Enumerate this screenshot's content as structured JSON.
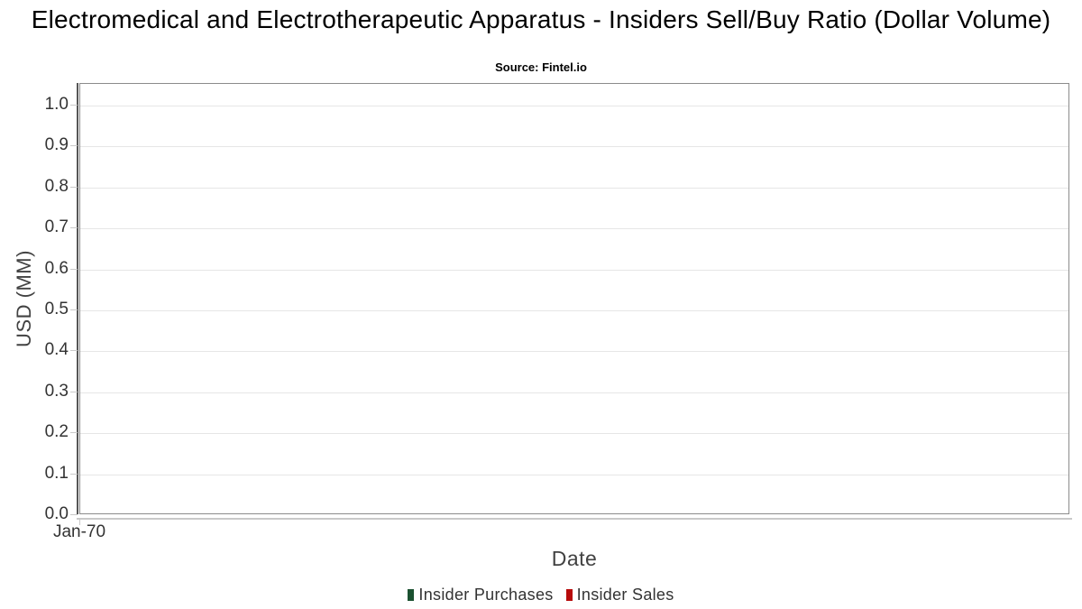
{
  "chart": {
    "title": "Electromedical and Electrotherapeutic Apparatus - Insiders Sell/Buy Ratio (Dollar Volume)",
    "subtitle": "Source: Fintel.io",
    "x_axis": {
      "title": "Date",
      "ticks": [
        "Jan-70"
      ]
    },
    "y_axis": {
      "title": "USD (MM)",
      "ticks": [
        "1.0",
        "0.9",
        "0.8",
        "0.7",
        "0.6",
        "0.5",
        "0.4",
        "0.3",
        "0.2",
        "0.1",
        "0.0"
      ]
    },
    "legend": [
      {
        "label": "Insider Purchases",
        "color": "#1b5130"
      },
      {
        "label": "Insider Sales",
        "color": "#b70b0b"
      }
    ],
    "colors": {
      "gridline": "#e6e6e6",
      "plot_border": "#8c8c8c",
      "axis_line": "#555555",
      "tick": "#c9c9c9",
      "tick_label": "#333333",
      "axis_title": "#424242",
      "legend_text": "#333333"
    }
  },
  "chart_data": {
    "type": "bar",
    "title": "Electromedical and Electrotherapeutic Apparatus - Insiders Sell/Buy Ratio (Dollar Volume)",
    "subtitle": "Source: Fintel.io",
    "xlabel": "Date",
    "ylabel": "USD (MM)",
    "x": [],
    "series": [
      {
        "name": "Insider Purchases",
        "color": "#1b5130",
        "values": []
      },
      {
        "name": "Insider Sales",
        "color": "#b70b0b",
        "values": []
      }
    ],
    "x_tick_labels": [
      "Jan-70"
    ],
    "ylim": [
      0,
      1.05
    ],
    "y_ticks": [
      0.0,
      0.1,
      0.2,
      0.3,
      0.4,
      0.5,
      0.6,
      0.7,
      0.8,
      0.9,
      1.0
    ],
    "grid": true,
    "legend_position": "bottom"
  }
}
